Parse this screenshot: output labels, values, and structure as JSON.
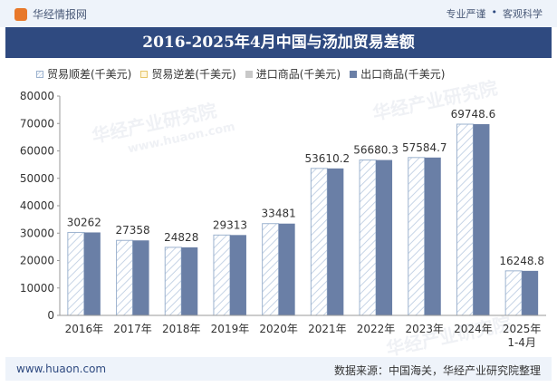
{
  "header": {
    "brand": "华经情报网",
    "tag_left": "专业严谨",
    "tag_sep": "•",
    "tag_right": "客观科学"
  },
  "footer": {
    "website": "www.huaon.com",
    "source": "数据来源：中国海关，华经产业研究院整理"
  },
  "watermark": {
    "text": "华经产业研究院",
    "url": "www.huaon.com"
  },
  "colors": {
    "surplus": "#c6d4e6",
    "deficit": "#fff6dd",
    "import": "#c8c8c8",
    "export": "#6a7fa6"
  },
  "chart_data": {
    "type": "bar",
    "title": "2016-2025年4月中国与汤加贸易差额",
    "categories": [
      "2016年",
      "2017年",
      "2018年",
      "2019年",
      "2020年",
      "2021年",
      "2022年",
      "2023年",
      "2024年",
      "2025年\n1-4月"
    ],
    "series": [
      {
        "name": "贸易顺差(千美元)",
        "values": [
          30262,
          27358,
          24828,
          29313,
          33481,
          53610.2,
          56680.3,
          57584.7,
          69748.6,
          16248.8
        ]
      },
      {
        "name": "贸易逆差(千美元)",
        "values": [
          0,
          0,
          0,
          0,
          0,
          0,
          0,
          0,
          0,
          0
        ]
      },
      {
        "name": "进口商品(千美元)",
        "values": [
          0,
          0,
          0,
          0,
          0,
          0,
          0,
          0,
          0,
          0
        ]
      },
      {
        "name": "出口商品(千美元)",
        "values": [
          30262,
          27358,
          24828,
          29313,
          33481,
          53610.2,
          56680.3,
          57584.7,
          69748.6,
          16248.8
        ]
      }
    ],
    "data_labels": [
      "30262",
      "27358",
      "24828",
      "29313",
      "33481",
      "53610.2",
      "56680.3",
      "57584.7",
      "69748.6",
      "16248.8"
    ],
    "ylim": [
      0,
      80000
    ],
    "yticks": [
      0,
      10000,
      20000,
      30000,
      40000,
      50000,
      60000,
      70000,
      80000
    ],
    "xlabel": "",
    "ylabel": "",
    "grid": false,
    "legend_position": "top"
  }
}
